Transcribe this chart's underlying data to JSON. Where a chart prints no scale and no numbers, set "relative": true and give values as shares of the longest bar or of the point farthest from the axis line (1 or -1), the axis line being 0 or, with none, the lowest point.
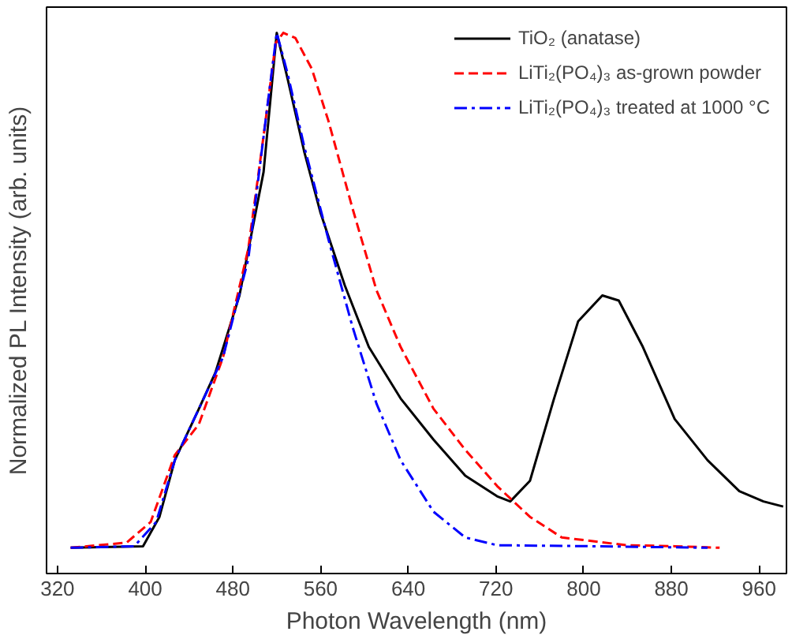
{
  "chart_data": {
    "type": "line",
    "relative": true,
    "xlabel": "Photon Wavelength (nm)",
    "ylabel": "Normalized PL Intensity (arb. units)",
    "xlim": [
      310,
      985
    ],
    "xticks": [
      320,
      400,
      480,
      560,
      640,
      720,
      800,
      880,
      960
    ],
    "grid": false,
    "legend": "top right",
    "series": [
      {
        "name": "TiO₂ (anatase)",
        "color": "#000000",
        "line_style": "solid",
        "x": [
          332,
          398,
          413,
          427,
          449,
          464,
          486,
          508,
          520,
          530,
          545,
          560,
          582,
          604,
          633,
          663,
          692,
          721,
          733,
          751,
          773,
          795,
          817,
          832,
          854,
          883,
          913,
          942,
          964,
          982
        ],
        "values": [
          0,
          0.003,
          0.06,
          0.17,
          0.27,
          0.34,
          0.49,
          0.73,
          1.0,
          0.91,
          0.77,
          0.65,
          0.51,
          0.39,
          0.29,
          0.21,
          0.14,
          0.1,
          0.09,
          0.13,
          0.29,
          0.44,
          0.49,
          0.48,
          0.39,
          0.25,
          0.17,
          0.11,
          0.09,
          0.08
        ]
      },
      {
        "name": "LiTi₂(PO₄)₃ as-grown powder",
        "color": "#ff0000",
        "line_style": "dashed",
        "x": [
          332,
          383,
          405,
          427,
          449,
          471,
          494,
          508,
          519,
          526,
          537,
          552,
          567,
          589,
          611,
          633,
          663,
          692,
          721,
          751,
          780,
          839,
          883,
          924
        ],
        "values": [
          0,
          0.01,
          0.05,
          0.18,
          0.24,
          0.37,
          0.58,
          0.8,
          0.98,
          1.0,
          0.99,
          0.93,
          0.83,
          0.66,
          0.5,
          0.39,
          0.27,
          0.19,
          0.12,
          0.06,
          0.02,
          0.005,
          0.003,
          0
        ]
      },
      {
        "name": "LiTi₂(PO₄)₃ treated at 1000 °C",
        "color": "#0000ff",
        "line_style": "dashdot",
        "x": [
          332,
          390,
          410,
          427,
          449,
          471,
          494,
          511,
          520,
          530,
          545,
          567,
          589,
          611,
          633,
          663,
          692,
          721,
          810,
          913
        ],
        "values": [
          0,
          0.003,
          0.05,
          0.17,
          0.27,
          0.37,
          0.56,
          0.85,
          1.0,
          0.92,
          0.78,
          0.6,
          0.43,
          0.28,
          0.17,
          0.07,
          0.02,
          0.005,
          0.003,
          0
        ]
      }
    ]
  }
}
